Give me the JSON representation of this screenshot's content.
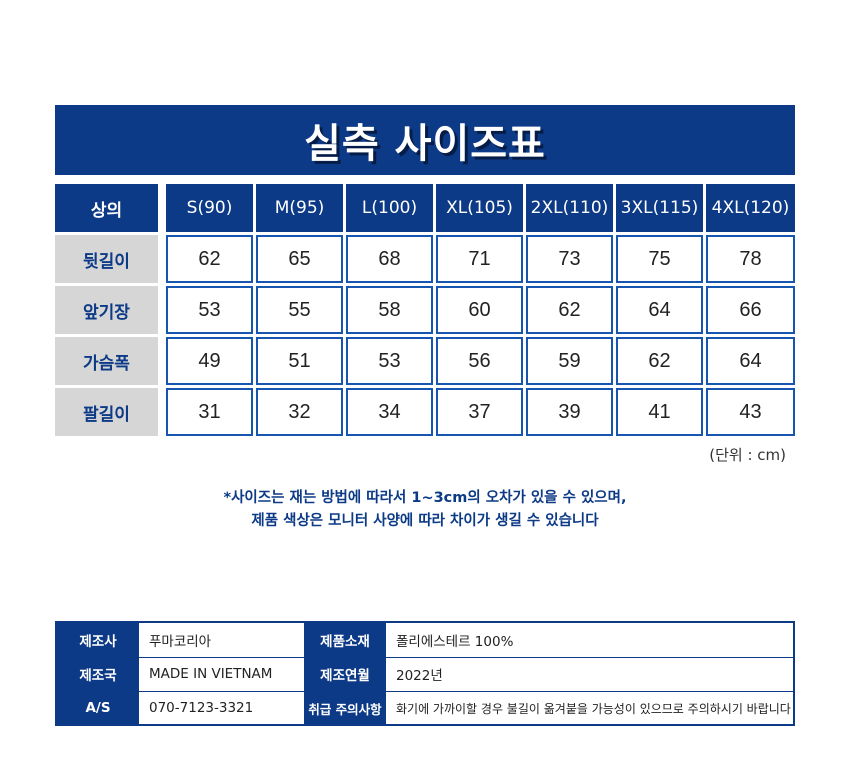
{
  "title": "실측 사이즈표",
  "size_table": {
    "header_label": "상의",
    "sizes": [
      "S(90)",
      "M(95)",
      "L(100)",
      "XL(105)",
      "2XL(110)",
      "3XL(115)",
      "4XL(120)"
    ],
    "rows": [
      {
        "label": "뒷길이",
        "values": [
          "62",
          "65",
          "68",
          "71",
          "73",
          "75",
          "78"
        ]
      },
      {
        "label": "앞기장",
        "values": [
          "53",
          "55",
          "58",
          "60",
          "62",
          "64",
          "66"
        ]
      },
      {
        "label": "가슴폭",
        "values": [
          "49",
          "51",
          "53",
          "56",
          "59",
          "62",
          "64"
        ]
      },
      {
        "label": "팔길이",
        "values": [
          "31",
          "32",
          "34",
          "37",
          "39",
          "41",
          "43"
        ]
      }
    ],
    "unit_note": "(단위 : cm)"
  },
  "notes": {
    "line1": "*사이즈는 재는 방법에 따라서 1~3cm의 오차가 있을 수 있으며,",
    "line2": "제품 색상은 모니터 사양에 따라 차이가 생길 수 있습니다"
  },
  "product_info": [
    {
      "label1": "제조사",
      "value1": "푸마코리아",
      "label2": "제품소재",
      "value2": "폴리에스테르 100%"
    },
    {
      "label1": "제조국",
      "value1": "MADE IN VIETNAM",
      "label2": "제조연월",
      "value2": "2022년"
    },
    {
      "label1": "A/S",
      "value1": "070-7123-3321",
      "label2": "취급 주의사항",
      "value2": "화기에 가까이할 경우 불길이 옮겨붙을 가능성이 있으므로 주의하시기 바랍니다"
    }
  ],
  "colors": {
    "brand_navy": "#0c3a86",
    "cell_border": "#1656b0",
    "label_gray": "#d6d6d6"
  }
}
